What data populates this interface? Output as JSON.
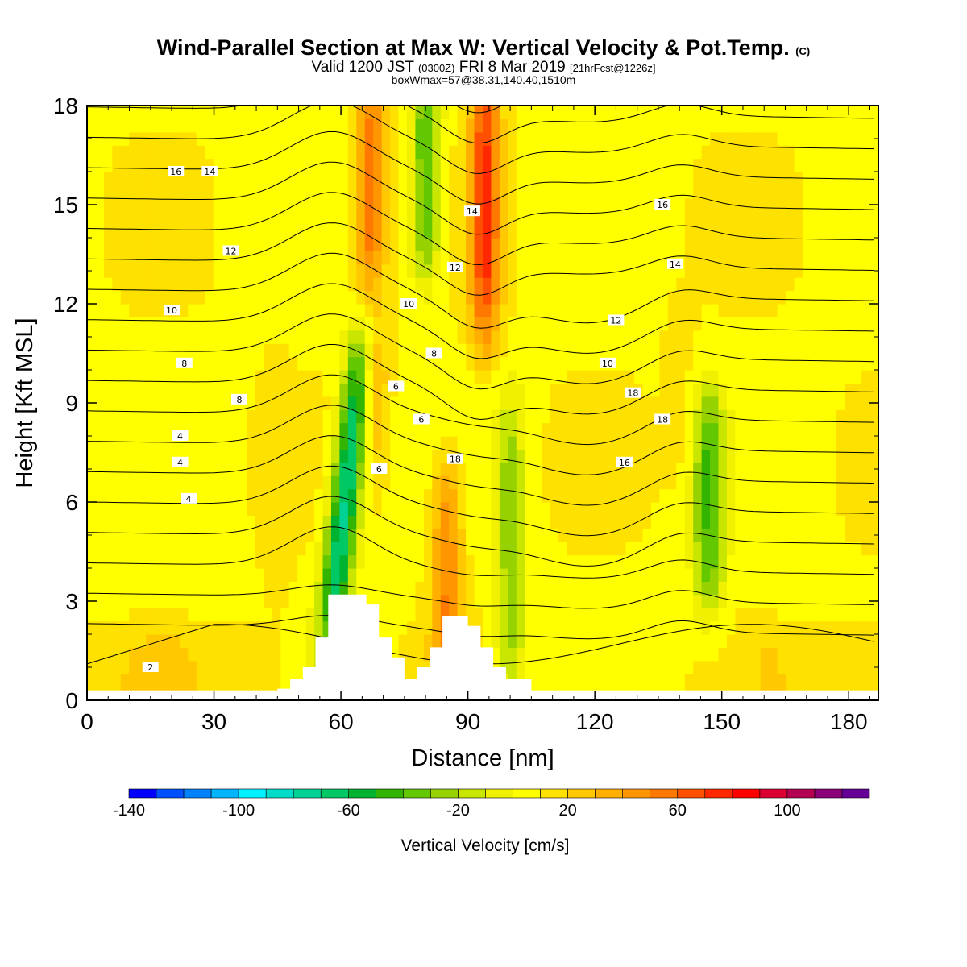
{
  "chart_data": {
    "type": "heatmap",
    "title": "Wind-Parallel Section at Max W: Vertical Velocity & Pot.Temp.",
    "title_mark": "(C)",
    "subtitle_valid": "Valid 1200 JST",
    "subtitle_utc": "(0300Z)",
    "subtitle_date": "FRI 8 Mar 2019",
    "subtitle_run": "[21hrFcst@1226z]",
    "subtitle_box": "boxWmax=57@38.31,140.40,1510m",
    "xlabel": "Distance [nm]",
    "ylabel": "Height [Kft MSL]",
    "xlim": [
      0,
      187
    ],
    "ylim": [
      0,
      18
    ],
    "xticks": [
      0,
      30,
      60,
      90,
      120,
      150,
      180
    ],
    "yticks": [
      0,
      3,
      6,
      9,
      12,
      15,
      18
    ],
    "colorbar": {
      "label": "Vertical Velocity [cm/s]",
      "min": -140,
      "max": 120,
      "step": 10,
      "ticks": [
        -140,
        -100,
        -60,
        -20,
        20,
        60,
        100
      ],
      "colors": [
        "#0000ff",
        "#0050ff",
        "#0082ff",
        "#00b4ff",
        "#00f0ff",
        "#00dcc8",
        "#00d296",
        "#00c864",
        "#00b432",
        "#32b400",
        "#64c800",
        "#96d200",
        "#c8e600",
        "#f0f000",
        "#ffff00",
        "#ffe100",
        "#ffc800",
        "#ffaf00",
        "#ff9600",
        "#ff7800",
        "#ff5000",
        "#ff2800",
        "#ff0000",
        "#dc0032",
        "#b40050",
        "#8c0078",
        "#640096"
      ]
    },
    "updrafts": [
      {
        "x": 67,
        "z_bottom": 9,
        "z_top": 18,
        "w": 60
      },
      {
        "x": 85,
        "z_bottom": 1.5,
        "z_top": 6,
        "w": 50
      },
      {
        "x": 94,
        "z_bottom": 12,
        "z_top": 18,
        "w": 70
      },
      {
        "x": 45,
        "z_bottom": 3,
        "z_top": 9,
        "w": 15
      },
      {
        "x": 140,
        "z_bottom": 8,
        "z_top": 11,
        "w": 15
      }
    ],
    "downdrafts": [
      {
        "x": 61,
        "z_bottom": 3,
        "z_top": 11,
        "w": -75
      },
      {
        "x": 80,
        "z_bottom": 14,
        "z_top": 18,
        "w": -40
      },
      {
        "x": 147,
        "z_bottom": 4,
        "z_top": 8,
        "w": -40
      },
      {
        "x": 100,
        "z_bottom": 1,
        "z_top": 8,
        "w": -25
      }
    ],
    "theta_contour_labels": [
      "2",
      "4",
      "4",
      "4",
      "6",
      "6",
      "6",
      "8",
      "8",
      "8",
      "10",
      "10",
      "10",
      "12",
      "12",
      "12",
      "14",
      "14",
      "14",
      "16",
      "16",
      "16",
      "18",
      "18",
      "18"
    ],
    "terrain": [
      [
        45,
        0
      ],
      [
        45,
        0.35
      ],
      [
        48,
        0.35
      ],
      [
        48,
        0.65
      ],
      [
        51,
        0.65
      ],
      [
        51,
        1.0
      ],
      [
        54,
        1.0
      ],
      [
        54,
        1.9
      ],
      [
        57,
        1.9
      ],
      [
        57,
        3.2
      ],
      [
        60,
        3.2
      ],
      [
        63,
        3.2
      ],
      [
        66,
        3.2
      ],
      [
        66,
        2.9
      ],
      [
        69,
        2.9
      ],
      [
        69,
        1.9
      ],
      [
        72,
        1.9
      ],
      [
        72,
        1.3
      ],
      [
        75,
        1.3
      ],
      [
        75,
        0.65
      ],
      [
        78,
        0.65
      ],
      [
        78,
        1.0
      ],
      [
        81,
        1.0
      ],
      [
        81,
        1.6
      ],
      [
        84,
        1.6
      ],
      [
        84,
        2.55
      ],
      [
        87,
        2.55
      ],
      [
        90,
        2.55
      ],
      [
        90,
        2.25
      ],
      [
        93,
        2.25
      ],
      [
        93,
        1.6
      ],
      [
        96,
        1.6
      ],
      [
        96,
        1.0
      ],
      [
        99,
        1.0
      ],
      [
        99,
        0.65
      ],
      [
        105,
        0.65
      ],
      [
        105,
        0
      ]
    ]
  }
}
